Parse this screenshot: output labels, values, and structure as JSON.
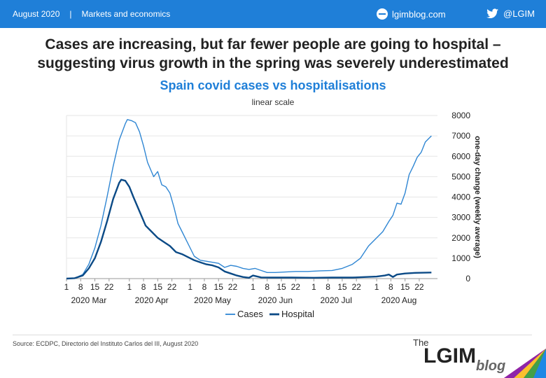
{
  "header": {
    "date": "August 2020",
    "section": "Markets and economics",
    "blog": "lgimblog.com",
    "twitter": "@LGIM"
  },
  "headline": {
    "line1": "Cases are increasing, but far fewer people are going to hospital –",
    "line2": "suggesting virus growth in the spring was severely underestimated"
  },
  "source": "Source: ECDPC, Directorio del Instituto Carlos del III, August 2020",
  "logo": {
    "the": "The",
    "main": "LGIM",
    "blog": "blog"
  },
  "colors": {
    "cases": "#2f86d3",
    "hospital": "#0b4a86",
    "accent": "#1f7fd8"
  },
  "chart_data": {
    "type": "line",
    "title": "Spain covid cases vs hospitalisations",
    "subtitle": "linear scale",
    "ylabel": "one-day change (weekly average)",
    "ylim": [
      0,
      8000
    ],
    "yticks": [
      0,
      1000,
      2000,
      3000,
      4000,
      5000,
      6000,
      7000,
      8000
    ],
    "xlim": [
      "2020-03-01",
      "2020-08-31"
    ],
    "day_ticks": [
      {
        "date": "2020-03-01",
        "label": "1"
      },
      {
        "date": "2020-03-08",
        "label": "8"
      },
      {
        "date": "2020-03-15",
        "label": "15"
      },
      {
        "date": "2020-03-22",
        "label": "22"
      },
      {
        "date": "2020-04-01",
        "label": "1"
      },
      {
        "date": "2020-04-08",
        "label": "8"
      },
      {
        "date": "2020-04-15",
        "label": "15"
      },
      {
        "date": "2020-04-22",
        "label": "22"
      },
      {
        "date": "2020-05-01",
        "label": "1"
      },
      {
        "date": "2020-05-08",
        "label": "8"
      },
      {
        "date": "2020-05-15",
        "label": "15"
      },
      {
        "date": "2020-05-22",
        "label": "22"
      },
      {
        "date": "2020-06-01",
        "label": "1"
      },
      {
        "date": "2020-06-08",
        "label": "8"
      },
      {
        "date": "2020-06-15",
        "label": "15"
      },
      {
        "date": "2020-06-22",
        "label": "22"
      },
      {
        "date": "2020-07-01",
        "label": "1"
      },
      {
        "date": "2020-07-08",
        "label": "8"
      },
      {
        "date": "2020-07-15",
        "label": "15"
      },
      {
        "date": "2020-07-22",
        "label": "22"
      },
      {
        "date": "2020-08-01",
        "label": "1"
      },
      {
        "date": "2020-08-08",
        "label": "8"
      },
      {
        "date": "2020-08-15",
        "label": "15"
      },
      {
        "date": "2020-08-22",
        "label": "22"
      }
    ],
    "month_labels": [
      {
        "date": "2020-03-12",
        "label": "2020 Mar"
      },
      {
        "date": "2020-04-12",
        "label": "2020 Apr"
      },
      {
        "date": "2020-05-12",
        "label": "2020 May"
      },
      {
        "date": "2020-06-12",
        "label": "2020 Jun"
      },
      {
        "date": "2020-07-12",
        "label": "2020 Jul"
      },
      {
        "date": "2020-08-12",
        "label": "2020 Aug"
      }
    ],
    "legend_position": "bottom",
    "series": [
      {
        "name": "Cases",
        "color": "#2f86d3",
        "width": 1.4,
        "points": [
          [
            "2020-03-01",
            0
          ],
          [
            "2020-03-05",
            20
          ],
          [
            "2020-03-09",
            200
          ],
          [
            "2020-03-12",
            700
          ],
          [
            "2020-03-15",
            1500
          ],
          [
            "2020-03-18",
            2600
          ],
          [
            "2020-03-21",
            4000
          ],
          [
            "2020-03-24",
            5500
          ],
          [
            "2020-03-27",
            6800
          ],
          [
            "2020-03-30",
            7600
          ],
          [
            "2020-03-31",
            7800
          ],
          [
            "2020-04-02",
            7750
          ],
          [
            "2020-04-04",
            7650
          ],
          [
            "2020-04-06",
            7200
          ],
          [
            "2020-04-08",
            6500
          ],
          [
            "2020-04-10",
            5700
          ],
          [
            "2020-04-13",
            5000
          ],
          [
            "2020-04-15",
            5250
          ],
          [
            "2020-04-17",
            4600
          ],
          [
            "2020-04-19",
            4500
          ],
          [
            "2020-04-21",
            4200
          ],
          [
            "2020-04-23",
            3500
          ],
          [
            "2020-04-25",
            2700
          ],
          [
            "2020-04-27",
            2300
          ],
          [
            "2020-04-30",
            1700
          ],
          [
            "2020-05-03",
            1100
          ],
          [
            "2020-05-06",
            900
          ],
          [
            "2020-05-09",
            850
          ],
          [
            "2020-05-12",
            800
          ],
          [
            "2020-05-15",
            750
          ],
          [
            "2020-05-18",
            550
          ],
          [
            "2020-05-21",
            650
          ],
          [
            "2020-05-24",
            600
          ],
          [
            "2020-05-27",
            500
          ],
          [
            "2020-05-30",
            450
          ],
          [
            "2020-06-02",
            500
          ],
          [
            "2020-06-05",
            400
          ],
          [
            "2020-06-08",
            300
          ],
          [
            "2020-06-12",
            300
          ],
          [
            "2020-06-16",
            320
          ],
          [
            "2020-06-22",
            350
          ],
          [
            "2020-06-28",
            350
          ],
          [
            "2020-07-04",
            380
          ],
          [
            "2020-07-10",
            400
          ],
          [
            "2020-07-15",
            500
          ],
          [
            "2020-07-20",
            700
          ],
          [
            "2020-07-24",
            1000
          ],
          [
            "2020-07-28",
            1600
          ],
          [
            "2020-08-01",
            2000
          ],
          [
            "2020-08-04",
            2300
          ],
          [
            "2020-08-07",
            2800
          ],
          [
            "2020-08-09",
            3100
          ],
          [
            "2020-08-11",
            3700
          ],
          [
            "2020-08-13",
            3650
          ],
          [
            "2020-08-15",
            4200
          ],
          [
            "2020-08-17",
            5100
          ],
          [
            "2020-08-19",
            5500
          ],
          [
            "2020-08-21",
            5950
          ],
          [
            "2020-08-23",
            6200
          ],
          [
            "2020-08-25",
            6700
          ],
          [
            "2020-08-28",
            7000
          ]
        ]
      },
      {
        "name": "Hospital",
        "color": "#0b4a86",
        "width": 2.4,
        "points": [
          [
            "2020-03-01",
            0
          ],
          [
            "2020-03-05",
            20
          ],
          [
            "2020-03-09",
            150
          ],
          [
            "2020-03-12",
            500
          ],
          [
            "2020-03-15",
            1000
          ],
          [
            "2020-03-18",
            1800
          ],
          [
            "2020-03-21",
            2800
          ],
          [
            "2020-03-24",
            3900
          ],
          [
            "2020-03-27",
            4700
          ],
          [
            "2020-03-28",
            4850
          ],
          [
            "2020-03-30",
            4800
          ],
          [
            "2020-04-01",
            4500
          ],
          [
            "2020-04-03",
            4000
          ],
          [
            "2020-04-06",
            3300
          ],
          [
            "2020-04-09",
            2600
          ],
          [
            "2020-04-12",
            2300
          ],
          [
            "2020-04-15",
            2000
          ],
          [
            "2020-04-18",
            1800
          ],
          [
            "2020-04-21",
            1600
          ],
          [
            "2020-04-24",
            1300
          ],
          [
            "2020-04-27",
            1200
          ],
          [
            "2020-04-30",
            1050
          ],
          [
            "2020-05-03",
            900
          ],
          [
            "2020-05-06",
            800
          ],
          [
            "2020-05-09",
            700
          ],
          [
            "2020-05-12",
            650
          ],
          [
            "2020-05-15",
            550
          ],
          [
            "2020-05-18",
            350
          ],
          [
            "2020-05-21",
            250
          ],
          [
            "2020-05-24",
            150
          ],
          [
            "2020-05-27",
            80
          ],
          [
            "2020-05-30",
            40
          ],
          [
            "2020-06-01",
            150
          ],
          [
            "2020-06-05",
            60
          ],
          [
            "2020-06-10",
            50
          ],
          [
            "2020-06-20",
            50
          ],
          [
            "2020-07-01",
            40
          ],
          [
            "2020-07-10",
            50
          ],
          [
            "2020-07-20",
            50
          ],
          [
            "2020-08-01",
            100
          ],
          [
            "2020-08-05",
            150
          ],
          [
            "2020-08-07",
            200
          ],
          [
            "2020-08-09",
            80
          ],
          [
            "2020-08-11",
            200
          ],
          [
            "2020-08-15",
            250
          ],
          [
            "2020-08-20",
            280
          ],
          [
            "2020-08-28",
            300
          ]
        ]
      }
    ]
  }
}
